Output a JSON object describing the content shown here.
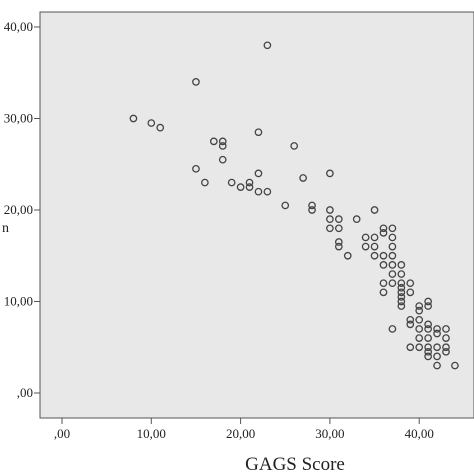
{
  "chart_data": {
    "type": "scatter",
    "xlabel": "GAGS Score",
    "ylabel_fragment": "n",
    "xlim": [
      0,
      46
    ],
    "ylim": [
      0,
      42
    ],
    "x_ticks": [
      {
        "value": 0,
        "label": ",00"
      },
      {
        "value": 10,
        "label": "10,00"
      },
      {
        "value": 20,
        "label": "20,00"
      },
      {
        "value": 30,
        "label": "30,00"
      },
      {
        "value": 40,
        "label": "40,00"
      }
    ],
    "y_ticks": [
      {
        "value": 0,
        "label": ",00"
      },
      {
        "value": 10,
        "label": "10,00"
      },
      {
        "value": 20,
        "label": "20,00"
      },
      {
        "value": 30,
        "label": "30,00"
      },
      {
        "value": 40,
        "label": "40,00"
      }
    ],
    "grid": false,
    "plot_background": "#e8e8e8",
    "marker_color": "#444444",
    "points": [
      [
        8,
        30
      ],
      [
        10,
        29.5
      ],
      [
        11,
        29
      ],
      [
        15,
        34
      ],
      [
        23,
        38
      ],
      [
        22,
        28.5
      ],
      [
        26,
        27
      ],
      [
        17,
        27.5
      ],
      [
        18,
        27.5
      ],
      [
        18,
        27
      ],
      [
        18,
        25.5
      ],
      [
        15,
        24.5
      ],
      [
        16,
        23
      ],
      [
        19,
        23
      ],
      [
        20,
        22.5
      ],
      [
        21,
        23
      ],
      [
        21,
        22.5
      ],
      [
        22,
        24
      ],
      [
        22,
        22
      ],
      [
        23,
        22
      ],
      [
        25,
        20.5
      ],
      [
        27,
        23.5
      ],
      [
        28,
        20.5
      ],
      [
        28,
        20
      ],
      [
        30,
        24
      ],
      [
        30,
        20
      ],
      [
        30,
        19
      ],
      [
        30,
        18
      ],
      [
        31,
        19
      ],
      [
        31,
        18
      ],
      [
        31,
        16.5
      ],
      [
        31,
        16
      ],
      [
        32,
        15
      ],
      [
        33,
        19
      ],
      [
        34,
        17
      ],
      [
        34,
        16
      ],
      [
        35,
        20
      ],
      [
        35,
        17
      ],
      [
        35,
        16
      ],
      [
        35,
        15
      ],
      [
        36,
        18
      ],
      [
        36,
        17.5
      ],
      [
        36,
        15
      ],
      [
        36,
        14
      ],
      [
        36,
        12
      ],
      [
        36,
        11
      ],
      [
        37,
        18
      ],
      [
        37,
        17
      ],
      [
        37,
        16
      ],
      [
        37,
        15
      ],
      [
        37,
        14
      ],
      [
        37,
        13
      ],
      [
        37,
        12
      ],
      [
        37,
        7
      ],
      [
        38,
        14
      ],
      [
        38,
        13
      ],
      [
        38,
        12
      ],
      [
        38,
        11.5
      ],
      [
        38,
        11
      ],
      [
        38,
        10.5
      ],
      [
        38,
        10
      ],
      [
        38,
        9.5
      ],
      [
        39,
        12
      ],
      [
        39,
        11
      ],
      [
        39,
        8
      ],
      [
        39,
        7.5
      ],
      [
        39,
        5
      ],
      [
        40,
        9.5
      ],
      [
        40,
        9
      ],
      [
        40,
        8
      ],
      [
        40,
        7
      ],
      [
        40,
        6
      ],
      [
        40,
        5
      ],
      [
        41,
        10
      ],
      [
        41,
        9.5
      ],
      [
        41,
        7.5
      ],
      [
        41,
        7
      ],
      [
        41,
        6
      ],
      [
        41,
        5
      ],
      [
        41,
        4.5
      ],
      [
        41,
        4
      ],
      [
        42,
        7
      ],
      [
        42,
        6.5
      ],
      [
        42,
        5
      ],
      [
        42,
        4
      ],
      [
        42,
        3
      ],
      [
        43,
        7
      ],
      [
        43,
        6
      ],
      [
        43,
        5
      ],
      [
        43,
        4.5
      ],
      [
        44,
        3
      ]
    ]
  }
}
